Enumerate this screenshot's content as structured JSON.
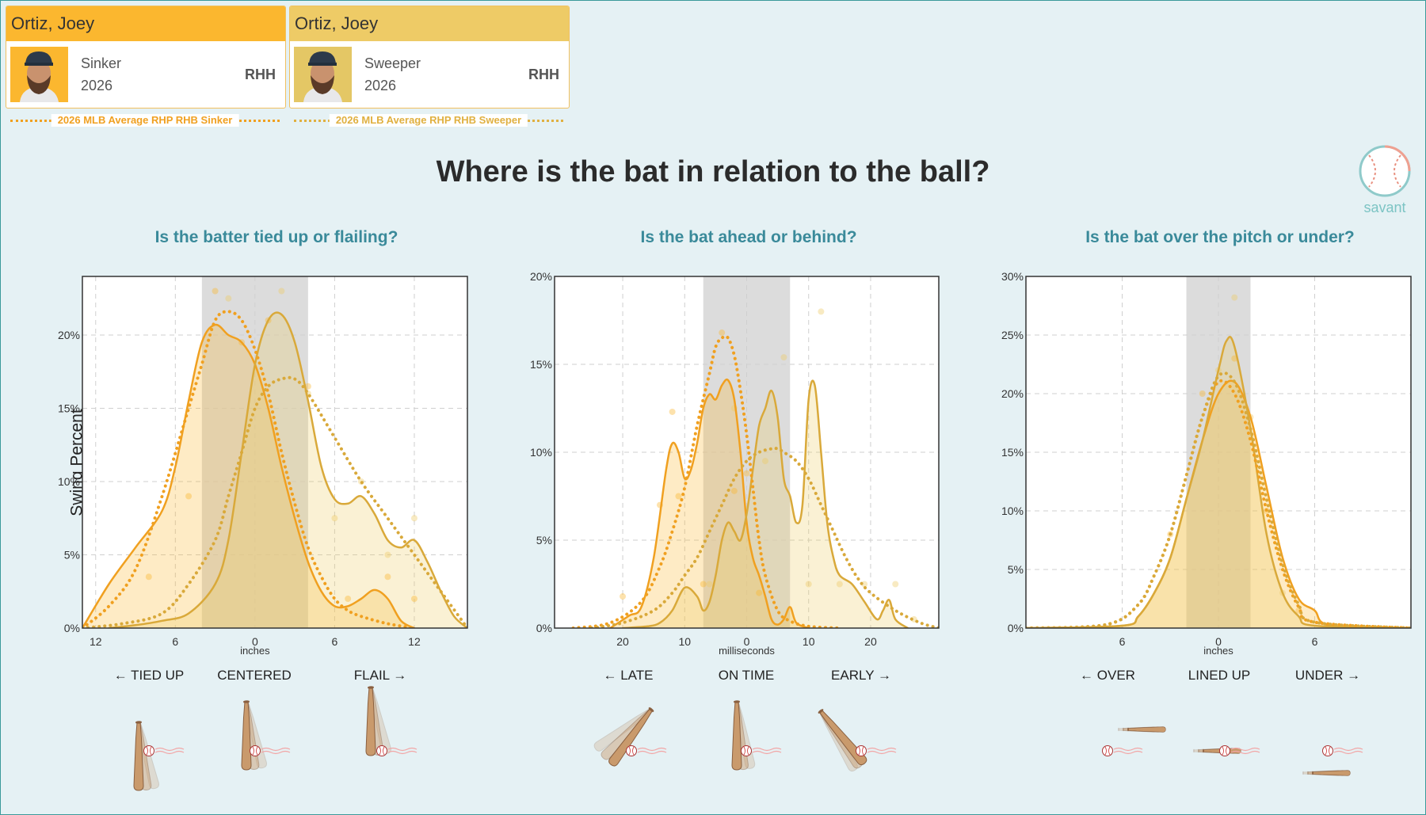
{
  "cards": [
    {
      "player": "Ortiz, Joey",
      "pitch": "Sinker",
      "year": "2026",
      "hand": "RHH",
      "avg_label": "2026 MLB Average RHP RHB Sinker",
      "header_color": "#fbb72f",
      "avg_color": "#f0a020"
    },
    {
      "player": "Ortiz, Joey",
      "pitch": "Sweeper",
      "year": "2026",
      "hand": "RHH",
      "avg_label": "2026 MLB Average RHP RHB Sweeper",
      "header_color": "#eecb66",
      "avg_color": "#e0b040"
    }
  ],
  "main_title": "Where is the bat in relation to the ball?",
  "logo_text": "savant",
  "y_axis_label": "Swing Percent",
  "chart_data": [
    {
      "type": "area",
      "title": "Is the batter tied up or flailing?",
      "xlabel": "inches",
      "xlim": [
        13,
        -16
      ],
      "ylim": [
        0,
        24
      ],
      "xticks": [
        12,
        6,
        0,
        -6,
        -12
      ],
      "xtick_labels": [
        "12",
        "6",
        "0",
        "6",
        "12"
      ],
      "yticks": [
        0,
        5,
        10,
        15,
        20
      ],
      "ytick_labels": [
        "0%",
        "5%",
        "10%",
        "15%",
        "20%"
      ],
      "shaded_range": [
        -4,
        4
      ],
      "grid": true,
      "direction_labels": [
        "← TIED UP",
        "CENTERED",
        "FLAIL →"
      ],
      "series": [
        {
          "name": "Sinker",
          "x": [
            13,
            11,
            9,
            7,
            6,
            5,
            4,
            3,
            2,
            1,
            0,
            -1,
            -2,
            -3,
            -4,
            -5,
            -6,
            -7,
            -8,
            -9,
            -10,
            -11,
            -12
          ],
          "y": [
            0,
            3,
            5.5,
            8,
            11,
            15.5,
            19.5,
            20.7,
            20,
            19.5,
            18,
            15,
            11,
            7.5,
            4.5,
            2.5,
            1.5,
            1.5,
            2,
            2.6,
            2,
            0.5,
            0
          ]
        },
        {
          "name": "Sweeper",
          "x": [
            11,
            9,
            7,
            5,
            3,
            2,
            1,
            0,
            -1,
            -2,
            -3,
            -4,
            -5,
            -6,
            -7,
            -8,
            -9,
            -10,
            -11,
            -12,
            -13,
            -14,
            -15,
            -16
          ],
          "y": [
            0,
            0.2,
            0.5,
            1,
            3,
            6,
            12,
            18,
            21,
            21.4,
            19.5,
            15.5,
            11,
            8.8,
            8.5,
            9,
            7.8,
            6,
            5.5,
            6,
            4.5,
            2.5,
            0.8,
            0
          ]
        },
        {
          "name": "Sinker MLB Average",
          "x": [
            13,
            11,
            9,
            7,
            5,
            4,
            3,
            2,
            1,
            0,
            -1,
            -2,
            -3,
            -4,
            -5,
            -6,
            -7,
            -8,
            -10,
            -12
          ],
          "y": [
            0,
            1.5,
            4,
            9,
            15,
            18,
            21,
            21.6,
            21,
            19,
            16,
            12,
            8.5,
            5.5,
            3.5,
            2,
            1.2,
            0.8,
            0.3,
            0
          ]
        },
        {
          "name": "Sweeper MLB Average",
          "x": [
            13,
            10,
            7,
            5,
            3,
            2,
            1,
            0,
            -1,
            -2,
            -3,
            -4,
            -6,
            -8,
            -10,
            -12,
            -14,
            -16
          ],
          "y": [
            0,
            0.3,
            1,
            3,
            6,
            9,
            12,
            15,
            16.5,
            17,
            17,
            16,
            13,
            10,
            7.5,
            5,
            2.5,
            0
          ]
        }
      ],
      "dots": [
        {
          "series": "Sinker",
          "x": [
            8,
            5,
            3,
            1,
            -1,
            -4,
            -7,
            -10,
            -12
          ],
          "y": [
            3.5,
            9,
            23,
            19.5,
            21,
            16.5,
            2,
            3.5,
            2
          ]
        },
        {
          "series": "Sweeper",
          "x": [
            2,
            -2,
            -4,
            -6,
            -8,
            -10,
            -12
          ],
          "y": [
            22.5,
            23,
            16,
            7.5,
            10,
            5,
            7.5
          ]
        }
      ]
    },
    {
      "type": "area",
      "title": "Is the bat ahead or behind?",
      "xlabel": "milliseconds",
      "xlim": [
        31,
        -31
      ],
      "ylim": [
        0,
        20
      ],
      "xticks": [
        20,
        10,
        0,
        -10,
        -20
      ],
      "xtick_labels": [
        "20",
        "10",
        "0",
        "10",
        "20"
      ],
      "yticks": [
        0,
        5,
        10,
        15,
        20
      ],
      "ytick_labels": [
        "0%",
        "5%",
        "10%",
        "15%",
        "20%"
      ],
      "shaded_range": [
        -7,
        7
      ],
      "grid": true,
      "direction_labels": [
        "← LATE",
        "ON TIME",
        "EARLY →"
      ],
      "series": [
        {
          "name": "Sinker",
          "x": [
            22,
            19,
            17,
            15,
            13,
            12,
            11,
            10,
            9,
            8,
            7,
            6,
            5,
            4,
            3,
            2,
            1,
            0,
            -1,
            -2,
            -3,
            -4,
            -5,
            -6,
            -7,
            -8,
            -10
          ],
          "y": [
            0,
            0.7,
            1.2,
            4,
            9,
            10.5,
            10,
            8.5,
            9,
            10.5,
            12.5,
            13.3,
            13,
            13.8,
            14.1,
            13,
            10,
            6,
            4,
            3,
            1.8,
            0.5,
            0.2,
            0.5,
            1.2,
            0.3,
            0
          ]
        },
        {
          "name": "Sweeper",
          "x": [
            20,
            16,
            14,
            12,
            10,
            8,
            7,
            6,
            5,
            4,
            3,
            2,
            1,
            0,
            -1,
            -2,
            -3,
            -4,
            -5,
            -6,
            -7,
            -8,
            -9,
            -10,
            -11,
            -12,
            -13,
            -14,
            -15,
            -17,
            -19,
            -21,
            -22,
            -23,
            -24,
            -26
          ],
          "y": [
            0,
            0.1,
            0.3,
            1,
            2.3,
            1.8,
            1,
            1.5,
            3,
            5,
            6,
            5.5,
            5,
            6.5,
            9,
            11.5,
            12.5,
            13.5,
            12,
            8.5,
            7.5,
            6,
            7,
            13,
            13.8,
            10,
            6,
            4,
            3,
            2.5,
            1.5,
            0.5,
            1,
            1.6,
            0.5,
            0
          ]
        },
        {
          "name": "Sinker MLB Average",
          "x": [
            28,
            22,
            17,
            14,
            12,
            10,
            8,
            6,
            5,
            4,
            3,
            2,
            1,
            0,
            -1,
            -2,
            -3,
            -5,
            -7,
            -10,
            -15
          ],
          "y": [
            0,
            0.3,
            1.5,
            3.5,
            5.5,
            8,
            11.5,
            14.5,
            16,
            16.5,
            16.5,
            15.5,
            13.5,
            11,
            8,
            5,
            3,
            1,
            0.4,
            0.1,
            0
          ]
        },
        {
          "name": "Sweeper MLB Average",
          "x": [
            25,
            20,
            15,
            12,
            10,
            8,
            6,
            4,
            2,
            0,
            -2,
            -4,
            -5,
            -6,
            -8,
            -10,
            -12,
            -14,
            -16,
            -18,
            -20,
            -24,
            -28,
            -31
          ],
          "y": [
            0,
            0.3,
            1,
            2,
            3,
            4,
            5.5,
            7,
            8.5,
            9.5,
            10,
            10.2,
            10.2,
            10,
            9.5,
            8.5,
            7,
            5.5,
            4,
            2.8,
            2,
            1,
            0.3,
            0
          ]
        }
      ],
      "dots": [
        {
          "series": "Sinker",
          "x": [
            20,
            14,
            12,
            11,
            7,
            4,
            2,
            0,
            -2
          ],
          "y": [
            1.8,
            7,
            12.3,
            7.5,
            2.5,
            16.8,
            7.8,
            8.8,
            2
          ]
        },
        {
          "series": "Sweeper",
          "x": [
            6,
            2,
            -3,
            -6,
            -10,
            -12,
            -15,
            -19,
            -24,
            -27
          ],
          "y": [
            2.5,
            12.5,
            9.5,
            15.4,
            2.5,
            18,
            2.5,
            2.5,
            2.5,
            0.5
          ]
        }
      ]
    },
    {
      "type": "area",
      "title": "Is the bat over the pitch or under?",
      "xlabel": "inches",
      "xlim": [
        12,
        -12
      ],
      "ylim": [
        0,
        30
      ],
      "xticks": [
        6,
        0,
        -6
      ],
      "xtick_labels": [
        "6",
        "0",
        "6"
      ],
      "yticks": [
        0,
        5,
        10,
        15,
        20,
        25,
        30
      ],
      "ytick_labels": [
        "0%",
        "5%",
        "10%",
        "15%",
        "20%",
        "25%",
        "30%"
      ],
      "shaded_range": [
        -2,
        2
      ],
      "grid": true,
      "direction_labels": [
        "← OVER",
        "LINED UP",
        "UNDER →"
      ],
      "series": [
        {
          "name": "Sinker",
          "x": [
            12,
            6,
            5,
            4,
            3,
            2,
            1,
            0,
            -1,
            -2,
            -3,
            -4,
            -5,
            -6,
            -7,
            -12
          ],
          "y": [
            0,
            0.2,
            1,
            3,
            6,
            11,
            16,
            20,
            21,
            18,
            12,
            6,
            2.5,
            1.5,
            0.2,
            0
          ]
        },
        {
          "name": "Sweeper",
          "x": [
            12,
            6,
            5,
            4,
            3,
            2,
            1,
            0,
            -0.5,
            -1,
            -2,
            -3,
            -4,
            -5,
            -6,
            -12
          ],
          "y": [
            0,
            0.2,
            1,
            3,
            6,
            11,
            16,
            22,
            24.5,
            24,
            17,
            8,
            3,
            1,
            0.2,
            0
          ]
        },
        {
          "name": "Sinker MLB Average",
          "x": [
            12,
            7,
            5,
            4,
            3,
            2,
            1,
            0,
            -1,
            -2,
            -3,
            -4,
            -5,
            -6,
            -12
          ],
          "y": [
            0,
            0.3,
            2,
            4.5,
            8,
            13,
            18,
            21,
            20,
            16,
            10,
            5,
            1.8,
            0.5,
            0
          ]
        },
        {
          "name": "Sweeper MLB Average",
          "x": [
            12,
            7,
            5,
            4,
            3,
            2,
            1,
            0,
            -1,
            -2,
            -3,
            -4,
            -5,
            -6,
            -12
          ],
          "y": [
            0,
            0.3,
            2,
            4.5,
            8,
            13,
            18,
            21.5,
            21,
            17,
            11,
            5.5,
            2,
            0.5,
            0
          ]
        }
      ],
      "dots": [
        {
          "series": "Sinker",
          "x": [
            3,
            1,
            -1,
            -3,
            -5
          ],
          "y": [
            8,
            20,
            23,
            10,
            1.5
          ]
        },
        {
          "series": "Sweeper",
          "x": [
            0,
            -1,
            -2,
            -4
          ],
          "y": [
            22,
            28.2,
            18,
            3
          ]
        }
      ]
    }
  ],
  "series_style": {
    "Sinker": {
      "color": "#f0a020",
      "fill": "#fbb72f",
      "fill_opacity": 0.28,
      "dash": "none"
    },
    "Sweeper": {
      "color": "#d9a93a",
      "fill": "#eecb66",
      "fill_opacity": 0.28,
      "dash": "none"
    },
    "Sinker MLB Average": {
      "color": "#f0a020",
      "fill": "none",
      "fill_opacity": 0,
      "dash": "dotted"
    },
    "Sweeper MLB Average": {
      "color": "#d9a93a",
      "fill": "none",
      "fill_opacity": 0,
      "dash": "dotted"
    }
  }
}
